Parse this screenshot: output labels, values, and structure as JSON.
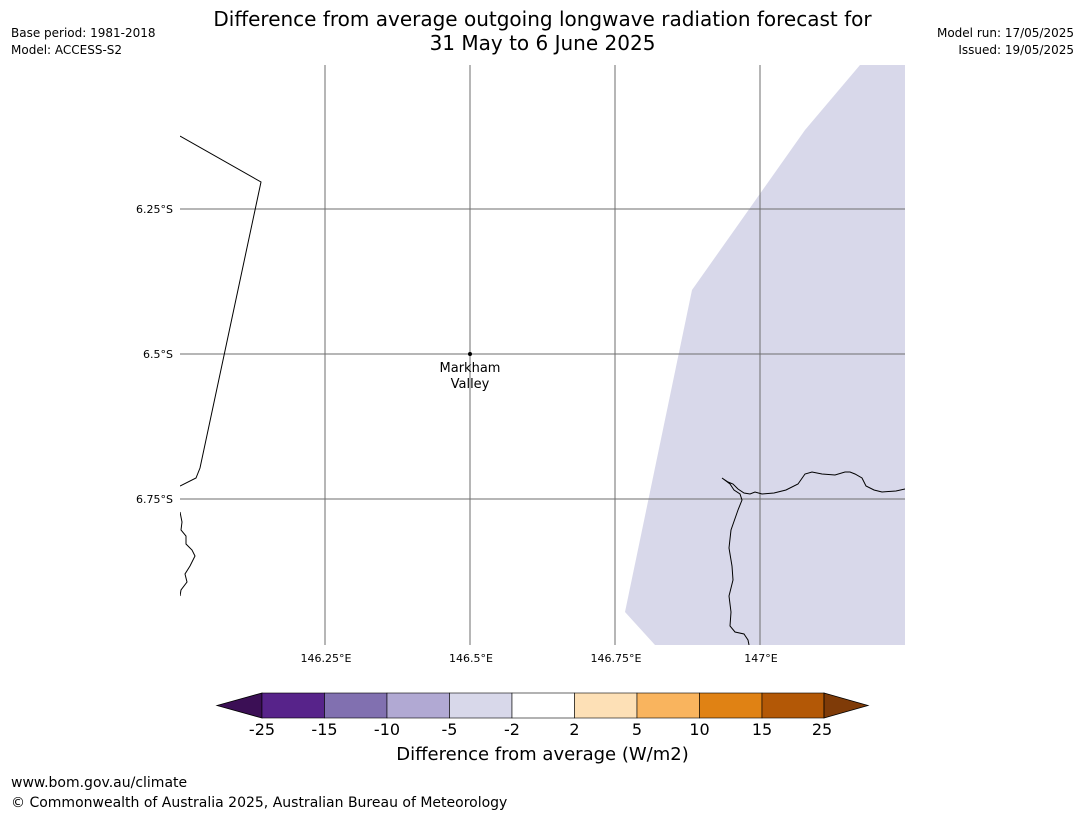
{
  "header": {
    "base_period": "Base period: 1981-2018",
    "model": "Model: ACCESS-S2",
    "model_run": "Model run: 17/05/2025",
    "issued": "Issued: 19/05/2025",
    "title_line1": "Difference from average outgoing longwave radiation forecast for",
    "title_line2": "31 May to 6 June 2025"
  },
  "map": {
    "lat_labels": [
      "6.25°S",
      "6.5°S",
      "6.75°S"
    ],
    "lon_labels": [
      "146.25°E",
      "146.5°E",
      "146.75°E",
      "147°E"
    ],
    "place": {
      "name_line1": "Markham",
      "name_line2": "Valley",
      "lat": -6.5,
      "lon": 146.5
    },
    "anomaly_region_class": "-5 to -2"
  },
  "colorbar": {
    "title": "Difference from average (W/m2)",
    "ticks": [
      "-25",
      "-15",
      "-10",
      "-5",
      "-2",
      "2",
      "5",
      "10",
      "15",
      "25"
    ],
    "colors": [
      "#3b0f55",
      "#57238a",
      "#8170b0",
      "#b1a9d3",
      "#d8d8ea",
      "#ffffff",
      "#fde0b6",
      "#f9b45e",
      "#e08214",
      "#b35806",
      "#7f3b08"
    ]
  },
  "footer": {
    "url": "www.bom.gov.au/climate",
    "copyright": "© Commonwealth of Australia 2025, Australian Bureau of Meteorology"
  }
}
